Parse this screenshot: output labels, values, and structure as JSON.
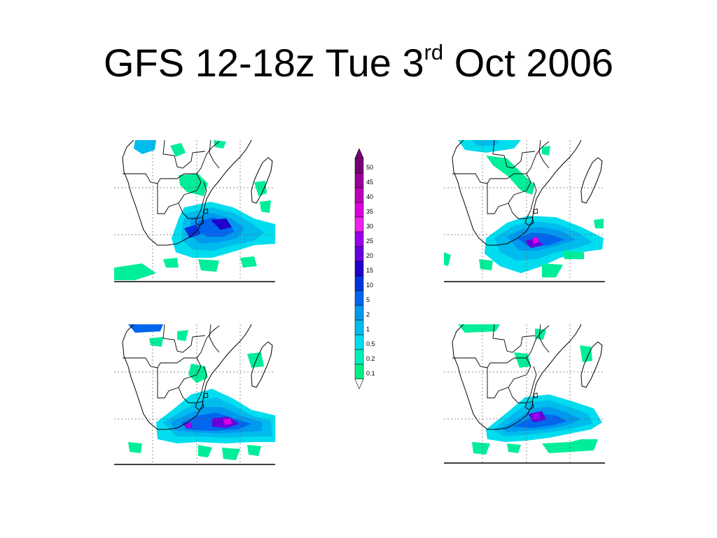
{
  "slide": {
    "title_main": "GFS 12-18z Tue 3",
    "title_sup": "rd",
    "title_end": " Oct 2006"
  },
  "legend": {
    "levels": [
      "50",
      "45",
      "40",
      "35",
      "30",
      "25",
      "20",
      "15",
      "10",
      "5",
      "2",
      "1",
      "0.5",
      "0.2",
      "0.1"
    ],
    "colors": [
      "#770077",
      "#990099",
      "#bb00bb",
      "#dd00dd",
      "#ee22ee",
      "#9900ee",
      "#6600dd",
      "#2200cc",
      "#0033dd",
      "#0066ee",
      "#0099ee",
      "#00bbee",
      "#00ddee",
      "#00eebb",
      "#00ee88"
    ]
  },
  "panels": [
    "precipitation-map-top-left",
    "precipitation-map-top-right",
    "precipitation-map-bottom-left",
    "precipitation-map-bottom-right"
  ]
}
